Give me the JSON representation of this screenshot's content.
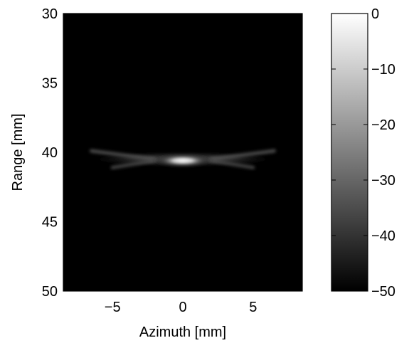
{
  "chart_data": {
    "type": "heatmap",
    "title": "",
    "xlabel": "Azimuth [mm]",
    "ylabel": "Range [mm]",
    "xlim": [
      -8.5,
      8.5
    ],
    "ylim": [
      30,
      50
    ],
    "y_reversed": true,
    "grid": false,
    "colormap": "gray",
    "x_ticks": [
      -5,
      0,
      5
    ],
    "x_tick_labels": [
      "−5",
      "0",
      "5"
    ],
    "y_ticks": [
      30,
      35,
      40,
      45,
      50
    ],
    "y_tick_labels": [
      "30",
      "35",
      "40",
      "45",
      "50"
    ],
    "colorbar": {
      "range": [
        -50,
        0
      ],
      "ticks": [
        0,
        -10,
        -20,
        -30,
        -40,
        -50
      ],
      "tick_labels": [
        "0",
        "−10",
        "−20",
        "−30",
        "−40",
        "−50"
      ]
    },
    "features": [
      {
        "name": "main-lobe",
        "x_center": 0,
        "y_center": 40.6,
        "x_halfwidth": 1.5,
        "y_halfwidth": 0.35,
        "level_db": 0
      },
      {
        "name": "side-lobe-band",
        "x_center": 0,
        "y_center": 40.5,
        "x_halfwidth": 6.5,
        "y_halfwidth": 0.5,
        "level_db": -30
      },
      {
        "name": "left-arm-upper",
        "x_from": -6.5,
        "y_from": 39.9,
        "x_to": -2.0,
        "y_to": 40.5,
        "level_db": -33
      },
      {
        "name": "left-arm-lower",
        "x_from": -5.0,
        "y_from": 41.1,
        "x_to": -2.0,
        "y_to": 40.6,
        "level_db": -35
      },
      {
        "name": "right-arm-upper",
        "x_from": 2.0,
        "y_from": 40.5,
        "x_to": 6.5,
        "y_to": 39.9,
        "level_db": -33
      },
      {
        "name": "right-arm-lower",
        "x_from": 2.0,
        "y_from": 40.6,
        "x_to": 5.0,
        "y_to": 41.1,
        "level_db": -35
      }
    ]
  }
}
